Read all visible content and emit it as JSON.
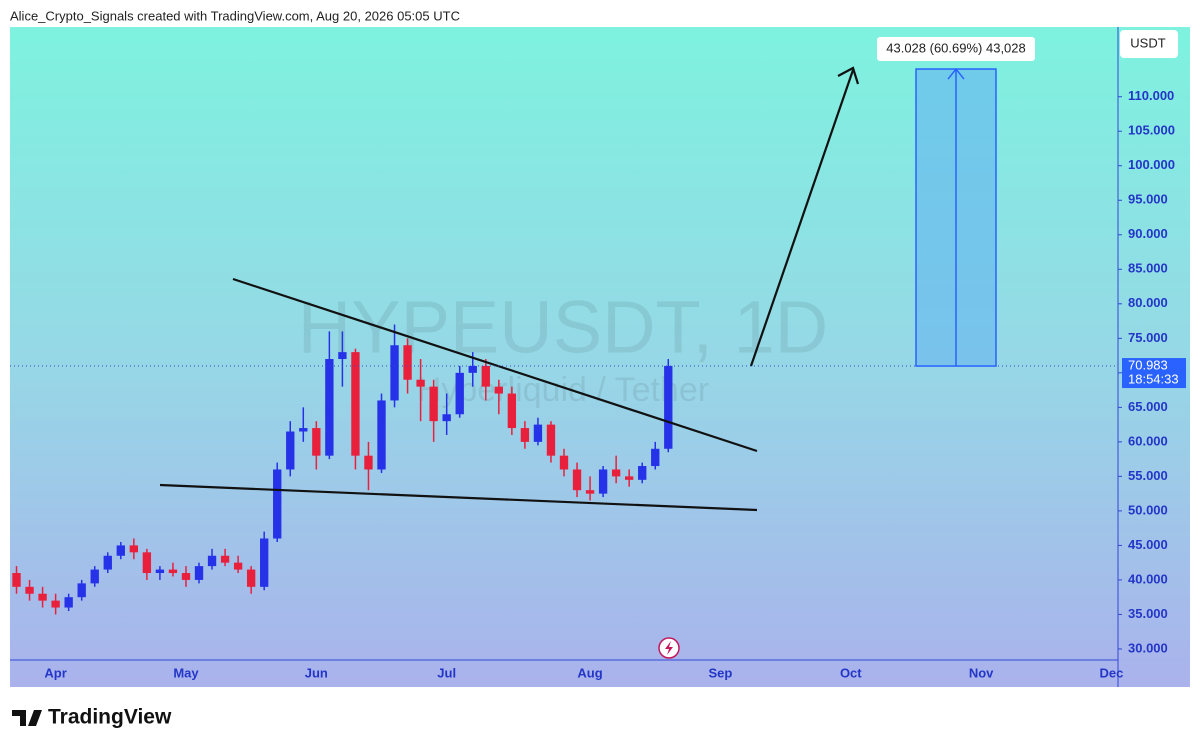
{
  "chart_data": {
    "type": "candlestick",
    "header": "Alice_Crypto_Signals created with TradingView.com, Aug 20, 2026 05:05 UTC",
    "watermark": "HYPEUSDT, 1D",
    "watermark_subtitle": "Hyperliquid / Tether",
    "currency": "USDT",
    "logo": "TradingView",
    "measure": {
      "value": 43.028,
      "label": "43.028 (60.69%) 43,028"
    },
    "last_price": 70.983,
    "countdown": "18:54:33",
    "up_color": "#2632e8",
    "down_color": "#e8203c",
    "categories": [
      null,
      null,
      null,
      "Apr",
      null,
      null,
      null,
      null,
      null,
      null,
      null,
      null,
      null,
      "May",
      null,
      null,
      null,
      null,
      null,
      null,
      null,
      null,
      null,
      "Jun",
      null,
      null,
      null,
      null,
      null,
      null,
      null,
      null,
      null,
      "Jul",
      null,
      null,
      null,
      null,
      null,
      null,
      null,
      null,
      null,
      null,
      "Aug",
      null,
      null,
      null,
      null,
      null,
      null,
      null,
      null,
      null,
      "Sep",
      null,
      null,
      null,
      null,
      null,
      null,
      null,
      null,
      null,
      "Oct",
      null,
      null,
      null,
      null,
      null,
      null,
      null,
      null,
      null,
      "Nov",
      null,
      null,
      null,
      null,
      null,
      null,
      null,
      null,
      null,
      "Dec"
    ],
    "open": [
      41,
      39,
      38,
      37,
      36,
      37.5,
      39.5,
      41.5,
      43.5,
      45,
      44,
      41,
      41.5,
      41,
      40,
      42,
      43.5,
      42.5,
      41.5,
      39,
      46,
      56,
      61.5,
      62,
      58,
      72,
      73,
      58,
      56,
      66,
      74,
      69,
      68,
      63,
      64,
      70,
      71,
      68,
      67,
      62,
      60,
      62.5,
      58,
      56,
      53,
      52.5,
      56,
      55,
      54.5,
      56.5,
      59,
      null,
      null,
      null,
      null,
      null,
      null,
      null,
      null,
      null,
      null,
      null,
      null,
      null,
      null,
      null,
      null,
      null,
      null,
      null,
      null,
      null,
      null,
      null,
      null,
      null,
      null,
      null,
      null,
      null,
      null,
      null,
      null,
      null,
      null
    ],
    "high": [
      42,
      40,
      39,
      38,
      38,
      40,
      42,
      44,
      45.5,
      46,
      44.5,
      42,
      42.5,
      42,
      42.5,
      44.5,
      44.5,
      43.5,
      42,
      47,
      57,
      63,
      65,
      63,
      76,
      76,
      73.5,
      60,
      67,
      77,
      75,
      72,
      69,
      67,
      71,
      73,
      72,
      69,
      68,
      63,
      63.5,
      63,
      59,
      57,
      55,
      56.5,
      58,
      56,
      57,
      60,
      72,
      null,
      null,
      null,
      null,
      null,
      null,
      null,
      null,
      null,
      null,
      null,
      null,
      null,
      null,
      null,
      null,
      null,
      null,
      null,
      null,
      null,
      null,
      null,
      null,
      null,
      null,
      null,
      null,
      null,
      null,
      null,
      null,
      null,
      null
    ],
    "low": [
      38,
      37,
      36,
      35,
      35.5,
      37,
      39,
      41,
      43,
      43,
      40,
      40,
      40.5,
      39,
      39.5,
      41.5,
      42,
      41,
      38,
      38.5,
      45.5,
      55,
      60,
      56,
      57.5,
      68,
      56,
      53,
      55.5,
      65,
      67,
      63,
      60,
      61,
      63.5,
      68,
      66,
      64,
      61,
      59,
      59.5,
      57,
      55,
      52,
      51.5,
      52,
      54,
      53.5,
      54,
      56,
      58.5,
      null,
      null,
      null,
      null,
      null,
      null,
      null,
      null,
      null,
      null,
      null,
      null,
      null,
      null,
      null,
      null,
      null,
      null,
      null,
      null,
      null,
      null,
      null,
      null,
      null,
      null,
      null,
      null,
      null,
      null,
      null,
      null,
      null,
      null
    ],
    "close": [
      39,
      38,
      37,
      36,
      37.5,
      39.5,
      41.5,
      43.5,
      45,
      44,
      41,
      41.5,
      41,
      40,
      42,
      43.5,
      42.5,
      41.5,
      39,
      46,
      56,
      61.5,
      62,
      58,
      72,
      73,
      58,
      56,
      66,
      74,
      69,
      68,
      63,
      64,
      70,
      71,
      68,
      67,
      62,
      60,
      62.5,
      58,
      56,
      53,
      52.5,
      56,
      55,
      54.5,
      56.5,
      59,
      71,
      null,
      null,
      null,
      null,
      null,
      null,
      null,
      null,
      null,
      null,
      null,
      null,
      null,
      null,
      null,
      null,
      null,
      null,
      null,
      null,
      null,
      null,
      null,
      null,
      null,
      null,
      null,
      null,
      null,
      null,
      null,
      null,
      null,
      null
    ],
    "ylim": [
      28.4,
      120.1
    ],
    "yticks": [
      {
        "value": 30,
        "label": "30.000"
      },
      {
        "value": 35,
        "label": "35.000"
      },
      {
        "value": 40,
        "label": "40.000"
      },
      {
        "value": 45,
        "label": "45.000"
      },
      {
        "value": 50,
        "label": "50.000"
      },
      {
        "value": 55,
        "label": "55.000"
      },
      {
        "value": 60,
        "label": "60.000"
      },
      {
        "value": 65,
        "label": "65.000"
      },
      {
        "value": 70,
        "label": "70.000"
      },
      {
        "value": 75,
        "label": "75.000"
      },
      {
        "value": 80,
        "label": "80.000"
      },
      {
        "value": 85,
        "label": "85.000"
      },
      {
        "value": 90,
        "label": "90.000"
      },
      {
        "value": 95,
        "label": "95.000"
      },
      {
        "value": 100,
        "label": "100.000"
      },
      {
        "value": 105,
        "label": "105.000"
      },
      {
        "value": 110,
        "label": "110.000"
      }
    ]
  }
}
